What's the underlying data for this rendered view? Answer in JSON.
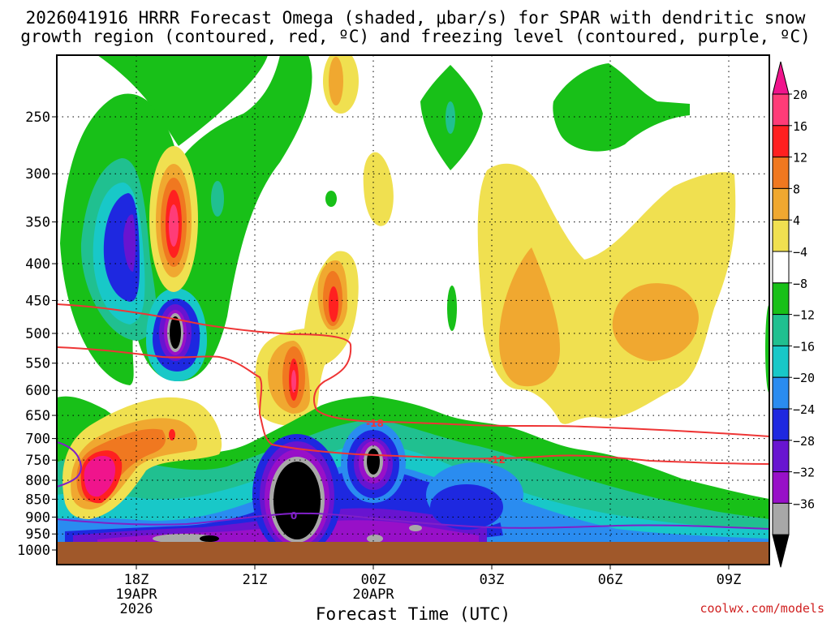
{
  "header": {
    "title_line1": "2026041916 HRRR Forecast Omega (shaded, μbar/s) for SPAR with dendritic snow",
    "title_line2": "growth region (contoured, red, ºC) and freezing level (contoured, purple, ºC)"
  },
  "footer": {
    "xlabel": "Forecast Time (UTC)",
    "credit": "coolwx.com/models"
  },
  "chart_data": {
    "type": "heatmap",
    "title": "2026041916 HRRR Forecast Omega (shaded, μbar/s) for SPAR with dendritic snow growth region (contoured, red, ºC) and freezing level (contoured, purple, ºC)",
    "xlabel": "Forecast Time (UTC)",
    "ylabel": "",
    "x_range_hours": [
      16,
      10
    ],
    "y_axis": {
      "scale": "pressure (inverted, log)",
      "range_hpa": [
        1000,
        200
      ],
      "ticks": [
        250,
        300,
        350,
        400,
        450,
        500,
        550,
        600,
        650,
        700,
        750,
        800,
        850,
        900,
        950,
        1000
      ],
      "tick_labels": [
        "250",
        "300",
        "350",
        "400",
        "450",
        "500",
        "550",
        "600",
        "650",
        "700",
        "750",
        "800",
        "850",
        "900",
        "950",
        "1000"
      ]
    },
    "x_axis": {
      "ticks": [
        {
          "hour": 18,
          "labels": [
            "18Z",
            "19APR",
            "2026"
          ]
        },
        {
          "hour": 21,
          "labels": [
            "21Z"
          ]
        },
        {
          "hour": 24,
          "labels": [
            "00Z",
            "20APR"
          ]
        },
        {
          "hour": 27,
          "labels": [
            "03Z"
          ]
        },
        {
          "hour": 30,
          "labels": [
            "06Z"
          ]
        },
        {
          "hour": 33,
          "labels": [
            "09Z"
          ]
        }
      ]
    },
    "grid": true,
    "colorbar": {
      "position": "right",
      "levels": [
        20,
        16,
        12,
        8,
        4,
        -4,
        -8,
        -12,
        -16,
        -20,
        -24,
        -28,
        -32,
        -36
      ],
      "labels": [
        "20",
        "16",
        "12",
        "8",
        "4",
        "−4",
        "−8",
        "−12",
        "−16",
        "−20",
        "−24",
        "−28",
        "−32",
        "−36"
      ],
      "colors_top_to_bottom": [
        "#ff3c78",
        "#ff2020",
        "#f07820",
        "#f0a830",
        "#f0e050",
        "#ffffff",
        "#18c018",
        "#20c090",
        "#18c8c8",
        "#2a8cf0",
        "#1e28e0",
        "#6814d0",
        "#9810c8",
        "#a8a8a8"
      ],
      "over_color": "#f0148c",
      "under_color": "#000000"
    },
    "contours": {
      "dendritic_growth": [
        {
          "label": "-18",
          "color": "#ee3535",
          "hour_label_at": 24.0
        },
        {
          "label": "-12",
          "color": "#ee3535",
          "hour_label_at": 27.1
        }
      ],
      "freezing_level": [
        {
          "label": "0",
          "color": "#8020c8",
          "hour_label_at": 22.0
        }
      ]
    },
    "ground": {
      "level_hpa": 975,
      "color": "#a0582a"
    }
  }
}
